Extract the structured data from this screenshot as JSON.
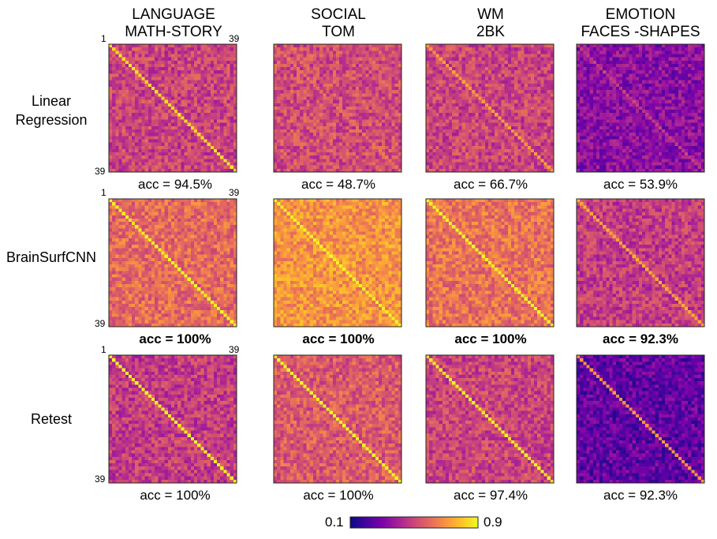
{
  "column_titles": [
    {
      "line1": "LANGUAGE",
      "line2": "MATH-STORY"
    },
    {
      "line1": "SOCIAL",
      "line2": "TOM"
    },
    {
      "line1": "WM",
      "line2": "2BK"
    },
    {
      "line1": "EMOTION",
      "line2": "FACES -SHAPES"
    }
  ],
  "row_labels": [
    {
      "line1": "Linear",
      "line2": "Regression"
    },
    {
      "line1": "BrainSurfCNN",
      "line2": ""
    },
    {
      "line1": "Retest",
      "line2": ""
    }
  ],
  "axis_ticks": {
    "start": "1",
    "end": "39"
  },
  "colorbar": {
    "min_label": "0.1",
    "max_label": "0.9",
    "colormap": "plasma"
  },
  "chart_data": {
    "type": "heatmap",
    "matrix_size": 39,
    "value_range": [
      0.1,
      0.9
    ],
    "columns": [
      "LANGUAGE MATH-STORY",
      "SOCIAL TOM",
      "WM 2BK",
      "EMOTION FACES -SHAPES"
    ],
    "rows": [
      "Linear Regression",
      "BrainSurfCNN",
      "Retest"
    ],
    "panels": [
      {
        "row": 0,
        "col": 0,
        "accuracy_label": "acc = 94.5%",
        "accuracy": 94.5,
        "bold": false,
        "offdiag_mean": 0.5,
        "diag_mean": 0.85
      },
      {
        "row": 0,
        "col": 1,
        "accuracy_label": "acc = 48.7%",
        "accuracy": 48.7,
        "bold": false,
        "offdiag_mean": 0.52,
        "diag_mean": 0.62
      },
      {
        "row": 0,
        "col": 2,
        "accuracy_label": "acc = 66.7%",
        "accuracy": 66.7,
        "bold": false,
        "offdiag_mean": 0.5,
        "diag_mean": 0.72
      },
      {
        "row": 0,
        "col": 3,
        "accuracy_label": "acc = 53.9%",
        "accuracy": 53.9,
        "bold": false,
        "offdiag_mean": 0.33,
        "diag_mean": 0.48
      },
      {
        "row": 1,
        "col": 0,
        "accuracy_label": "acc = 100%",
        "accuracy": 100,
        "bold": true,
        "offdiag_mean": 0.6,
        "diag_mean": 0.9
      },
      {
        "row": 1,
        "col": 1,
        "accuracy_label": "acc = 100%",
        "accuracy": 100,
        "bold": true,
        "offdiag_mean": 0.7,
        "diag_mean": 0.9
      },
      {
        "row": 1,
        "col": 2,
        "accuracy_label": "acc = 100%",
        "accuracy": 100,
        "bold": true,
        "offdiag_mean": 0.62,
        "diag_mean": 0.9
      },
      {
        "row": 1,
        "col": 3,
        "accuracy_label": "acc = 92.3%",
        "accuracy": 92.3,
        "bold": true,
        "offdiag_mean": 0.48,
        "diag_mean": 0.75
      },
      {
        "row": 2,
        "col": 0,
        "accuracy_label": "acc = 100%",
        "accuracy": 100,
        "bold": false,
        "offdiag_mean": 0.48,
        "diag_mean": 0.9
      },
      {
        "row": 2,
        "col": 1,
        "accuracy_label": "acc = 100%",
        "accuracy": 100,
        "bold": false,
        "offdiag_mean": 0.56,
        "diag_mean": 0.9
      },
      {
        "row": 2,
        "col": 2,
        "accuracy_label": "acc = 97.4%",
        "accuracy": 97.4,
        "bold": false,
        "offdiag_mean": 0.5,
        "diag_mean": 0.88
      },
      {
        "row": 2,
        "col": 3,
        "accuracy_label": "acc = 92.3%",
        "accuracy": 92.3,
        "bold": false,
        "offdiag_mean": 0.25,
        "diag_mean": 0.7
      }
    ]
  }
}
